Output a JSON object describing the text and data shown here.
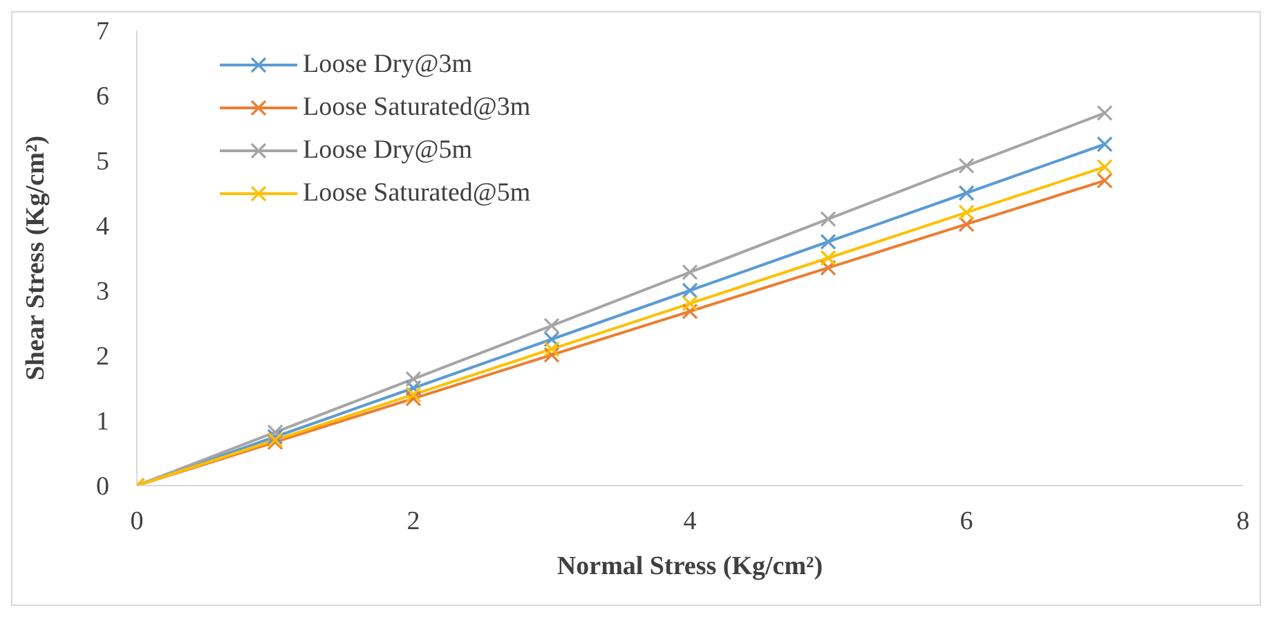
{
  "chart_data": {
    "type": "line",
    "xlabel": "Normal Stress (Kg/cm²)",
    "ylabel": "Shear Stress (Kg/cm²)",
    "x": [
      0,
      1,
      2,
      3,
      4,
      5,
      6,
      7
    ],
    "xlim": [
      0,
      8
    ],
    "xticks": [
      0,
      2,
      4,
      6,
      8
    ],
    "ylim": [
      0,
      7
    ],
    "yticks": [
      0,
      1,
      2,
      3,
      4,
      5,
      6,
      7
    ],
    "grid": false,
    "legend": "top left",
    "marker": "cross",
    "line_style": "solid",
    "series": [
      {
        "name": "Loose Dry@3m",
        "color": "#5b9bd5",
        "values": [
          0,
          0.75,
          1.5,
          2.25,
          3,
          3.75,
          4.5,
          5.25
        ]
      },
      {
        "name": "Loose Saturated@3m",
        "color": "#ed7d31",
        "values": [
          0,
          0.67,
          1.34,
          2.01,
          2.68,
          3.35,
          4.02,
          4.69
        ]
      },
      {
        "name": "Loose Dry@5m",
        "color": "#a5a5a5",
        "values": [
          0,
          0.82,
          1.64,
          2.46,
          3.28,
          4.1,
          4.92,
          5.73
        ]
      },
      {
        "name": "Loose Saturated@5m",
        "color": "#ffc000",
        "values": [
          0,
          0.7,
          1.4,
          2.1,
          2.8,
          3.5,
          4.2,
          4.9
        ]
      }
    ]
  }
}
